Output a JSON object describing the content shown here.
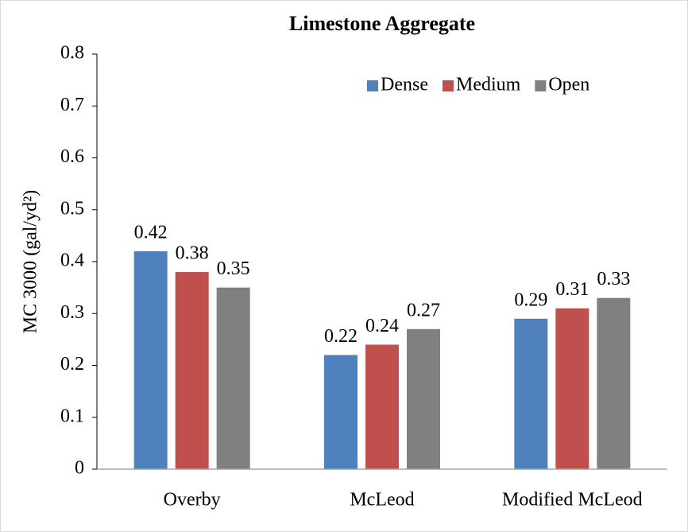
{
  "chart_data": {
    "type": "bar",
    "title": "Limestone Aggregate",
    "y_label": "MC 3000 (gal/yd²)",
    "categories": [
      "Overby",
      "McLeod",
      "Modified McLeod"
    ],
    "series": [
      {
        "name": "Dense",
        "color": "#4f81bd",
        "values": [
          0.42,
          0.22,
          0.29
        ]
      },
      {
        "name": "Medium",
        "color": "#c0504d",
        "values": [
          0.38,
          0.24,
          0.31
        ]
      },
      {
        "name": "Open",
        "color": "#808080",
        "values": [
          0.35,
          0.27,
          0.33
        ]
      }
    ],
    "ylim": [
      0,
      0.8
    ],
    "yticks": [
      0,
      0.1,
      0.2,
      0.3,
      0.4,
      0.5,
      0.6,
      0.7,
      0.8
    ],
    "grid": false,
    "legend": "top-right",
    "data_labels": true
  }
}
